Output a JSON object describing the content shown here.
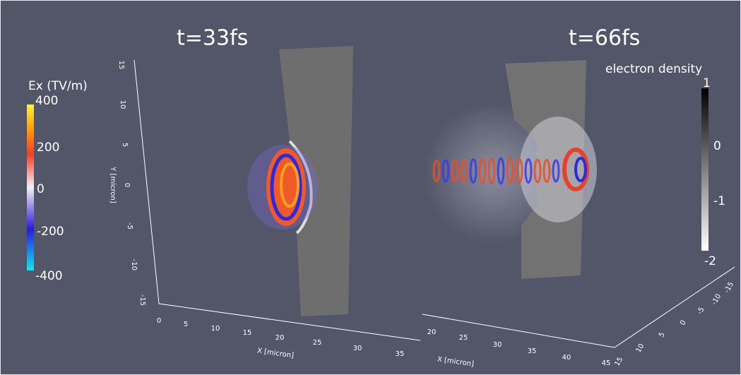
{
  "panels": [
    {
      "title": "t=33fs",
      "x_axis": {
        "label": "X [micron]",
        "ticks": [
          "0",
          "5",
          "10",
          "15",
          "20",
          "25",
          "30",
          "35"
        ]
      },
      "y_axis": {
        "label": "Y [micron]",
        "ticks": [
          "15",
          "10",
          "5",
          "0",
          "-5",
          "-10",
          "-15"
        ]
      }
    },
    {
      "title": "t=66fs",
      "x_axis": {
        "label": "X [micron]",
        "ticks": [
          "20",
          "25",
          "30",
          "35",
          "40",
          "45"
        ]
      },
      "z_axis": {
        "ticks": [
          "15",
          "10",
          "5",
          "0",
          "-5",
          "-10",
          "-15"
        ]
      }
    }
  ],
  "colorbars": [
    {
      "label": "Ex (TV/m)",
      "ticks": [
        "400",
        "200",
        "0",
        "-200",
        "-400"
      ]
    },
    {
      "label": "electron density",
      "ticks": [
        "1",
        "0",
        "-1",
        "-2"
      ]
    }
  ]
}
